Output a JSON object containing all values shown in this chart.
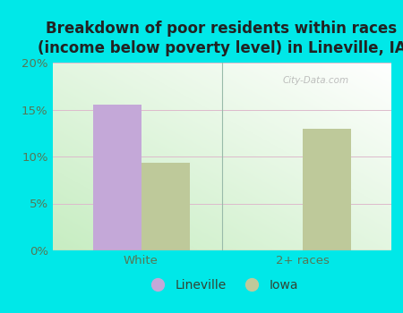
{
  "title": "Breakdown of poor residents within races\n(income below poverty level) in Lineville, IA",
  "categories": [
    "White",
    "2+ races"
  ],
  "lineville_values": [
    15.5,
    0.0
  ],
  "iowa_values": [
    9.3,
    13.0
  ],
  "lineville_color": "#c4a8d8",
  "iowa_color": "#bec99a",
  "background_color": "#00e8e8",
  "plot_bg_topleft": "#d4edd4",
  "plot_bg_topright": "#e8f4e8",
  "plot_bg_bottomleft": "#c8e8c8",
  "plot_bg_bottomright": "#f5faf5",
  "gradient_left": "#c8e8c0",
  "gradient_right": "#f0f8ee",
  "ylim": [
    0,
    20
  ],
  "yticks": [
    0,
    5,
    10,
    15,
    20
  ],
  "ytick_labels": [
    "0%",
    "5%",
    "10%",
    "15%",
    "20%"
  ],
  "bar_width": 0.3,
  "title_fontsize": 12,
  "tick_fontsize": 9.5,
  "legend_labels": [
    "Lineville",
    "Iowa"
  ],
  "watermark": "City-Data.com"
}
